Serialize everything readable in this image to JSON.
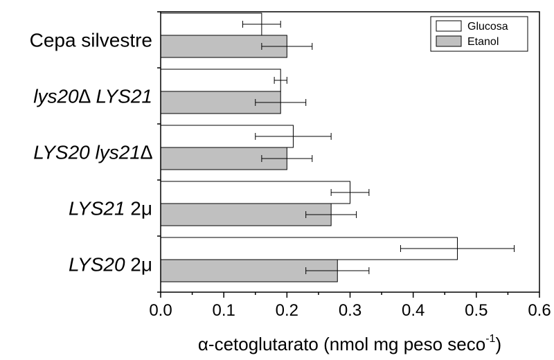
{
  "chart_data": {
    "type": "bar",
    "orientation": "horizontal",
    "categories": [
      {
        "parts": [
          {
            "t": "Cepa silvestre",
            "i": false
          }
        ]
      },
      {
        "parts": [
          {
            "t": "lys20∆ LYS21",
            "i": true
          }
        ]
      },
      {
        "parts": [
          {
            "t": "LYS20 lys21∆",
            "i": true
          }
        ]
      },
      {
        "parts": [
          {
            "t": "LYS21",
            "i": true
          },
          {
            "t": " 2μ",
            "i": false
          }
        ]
      },
      {
        "parts": [
          {
            "t": "LYS20",
            "i": true
          },
          {
            "t": " 2μ",
            "i": false
          }
        ]
      }
    ],
    "series": [
      {
        "name": "Glucosa",
        "color": "#ffffff",
        "values": [
          0.16,
          0.19,
          0.21,
          0.3,
          0.47
        ],
        "errors": [
          0.03,
          0.01,
          0.06,
          0.03,
          0.09
        ]
      },
      {
        "name": "Etanol",
        "color": "#c0c0c0",
        "values": [
          0.2,
          0.19,
          0.2,
          0.27,
          0.28
        ],
        "errors": [
          0.04,
          0.04,
          0.04,
          0.04,
          0.05
        ]
      }
    ],
    "xlim": [
      0,
      0.6
    ],
    "xticks": [
      "0.0",
      "0.1",
      "0.2",
      "0.3",
      "0.4",
      "0.5",
      "0.6"
    ],
    "xlabel_main": "α-cetoglutarato (nmol mg peso seco",
    "xlabel_sup": "-1",
    "xlabel_end": ")",
    "legend_position": "top-right",
    "grid": false
  }
}
